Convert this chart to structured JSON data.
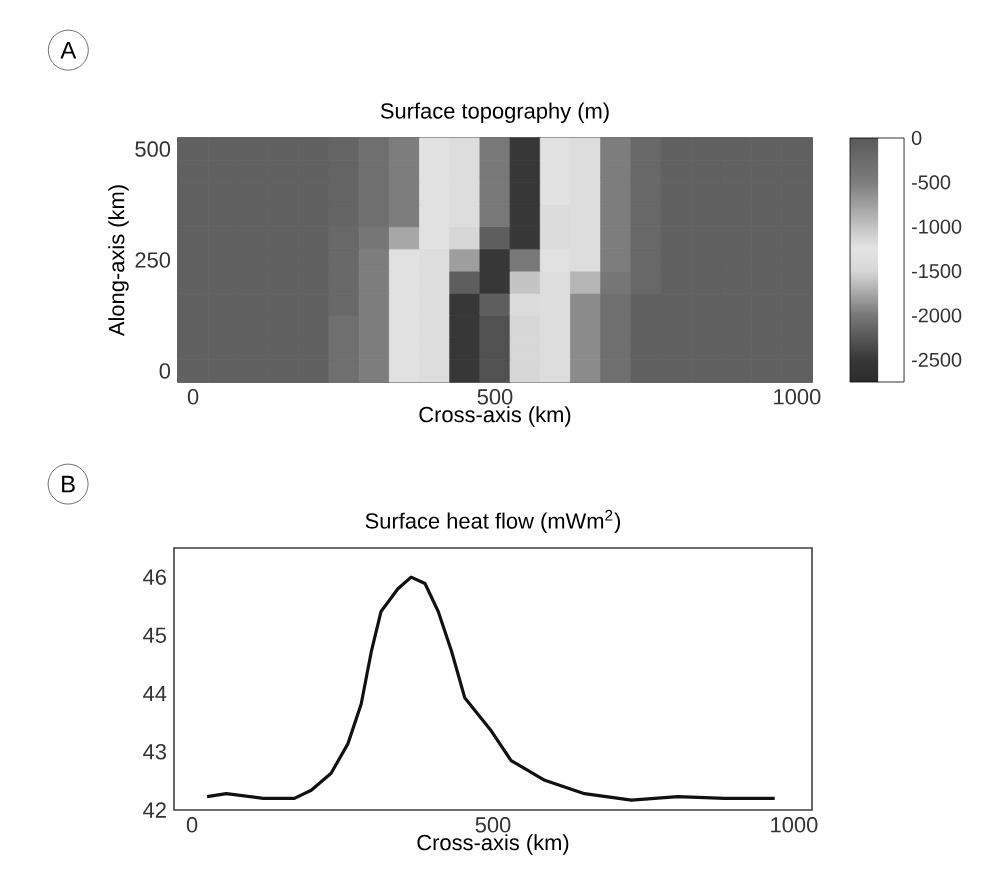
{
  "chart_data": [
    {
      "type": "heatmap",
      "title": "Surface topography (m)",
      "xlabel": "Cross-axis (km)",
      "ylabel": "Along-axis (km)",
      "annotations": [
        "A"
      ],
      "categories": [
        "0",
        null,
        null,
        null,
        null,
        null,
        null,
        null,
        null,
        null,
        "500",
        null,
        null,
        null,
        null,
        null,
        null,
        null,
        null,
        null,
        "1000"
      ],
      "y_categories": [
        "500",
        null,
        null,
        null,
        null,
        "250",
        null,
        null,
        null,
        null,
        "0"
      ],
      "cells": [
        [
          -100,
          -100,
          -100,
          -100,
          -100,
          -150,
          -300,
          -500,
          -1300,
          -1200,
          -2000,
          -2500,
          -1300,
          -1200,
          -500,
          -200,
          -100,
          -100,
          -100,
          -100,
          -100
        ],
        [
          -100,
          -100,
          -100,
          -100,
          -100,
          -150,
          -300,
          -500,
          -1300,
          -1200,
          -2000,
          -2500,
          -1300,
          -1200,
          -500,
          -200,
          -100,
          -100,
          -100,
          -100,
          -100
        ],
        [
          -100,
          -100,
          -100,
          -100,
          -100,
          -150,
          -300,
          -500,
          -1300,
          -1200,
          -2000,
          -2500,
          -1300,
          -1200,
          -500,
          -200,
          -100,
          -100,
          -100,
          -100,
          -100
        ],
        [
          -100,
          -100,
          -100,
          -100,
          -100,
          -150,
          -300,
          -500,
          -1300,
          -1200,
          -2000,
          -2500,
          -1400,
          -1200,
          -500,
          -200,
          -100,
          -100,
          -100,
          -100,
          -100
        ],
        [
          -100,
          -100,
          -100,
          -100,
          -100,
          -200,
          -400,
          -800,
          -1300,
          -1500,
          -2200,
          -2500,
          -1400,
          -1200,
          -500,
          -200,
          -100,
          -100,
          -100,
          -100,
          -100
        ],
        [
          -100,
          -100,
          -100,
          -100,
          -100,
          -200,
          -500,
          -1300,
          -1200,
          -1800,
          -2500,
          -2000,
          -1300,
          -1200,
          -500,
          -200,
          -100,
          -100,
          -100,
          -100,
          -100
        ],
        [
          -100,
          -100,
          -100,
          -100,
          -100,
          -200,
          -500,
          -1300,
          -1200,
          -2200,
          -2500,
          -1600,
          -1200,
          -900,
          -400,
          -200,
          -100,
          -100,
          -100,
          -100,
          -100
        ],
        [
          -100,
          -100,
          -100,
          -100,
          -100,
          -200,
          -500,
          -1300,
          -1200,
          -2500,
          -2200,
          -1400,
          -1200,
          -600,
          -300,
          -100,
          -100,
          -100,
          -100,
          -100,
          -100
        ],
        [
          -100,
          -100,
          -100,
          -100,
          -100,
          -300,
          -500,
          -1300,
          -1200,
          -2500,
          -2300,
          -1500,
          -1200,
          -600,
          -300,
          -100,
          -100,
          -100,
          -100,
          -100,
          -100
        ],
        [
          -100,
          -100,
          -100,
          -100,
          -100,
          -300,
          -500,
          -1300,
          -1200,
          -2500,
          -2300,
          -1500,
          -1200,
          -600,
          -300,
          -100,
          -100,
          -100,
          -100,
          -100,
          -100
        ],
        [
          -100,
          -100,
          -100,
          -100,
          -100,
          -300,
          -500,
          -1300,
          -1200,
          -2500,
          -2300,
          -1500,
          -1200,
          -600,
          -300,
          -100,
          -100,
          -100,
          -100,
          -100,
          -100
        ]
      ],
      "clim": [
        -2750,
        0
      ],
      "cticks": [
        0,
        -500,
        -1000,
        -1500,
        -2000,
        -2500
      ]
    },
    {
      "type": "line",
      "title": "Surface heat flow (mWm$^{2}$)",
      "xlabel": "Cross-axis (km)",
      "annotations": [
        "B"
      ],
      "x": [
        25,
        57,
        118,
        170,
        198,
        231,
        259,
        281,
        298,
        314,
        342,
        364,
        387,
        409,
        431,
        453,
        497,
        530,
        586,
        652,
        730,
        807,
        885,
        968
      ],
      "series": [
        {
          "color": "#111111",
          "values": [
            42.23,
            42.28,
            42.2,
            42.2,
            42.34,
            42.63,
            43.14,
            43.82,
            44.73,
            45.41,
            45.8,
            46.0,
            45.89,
            45.41,
            44.73,
            43.93,
            43.36,
            42.85,
            42.51,
            42.28,
            42.17,
            42.23,
            42.2,
            42.2
          ]
        }
      ],
      "xlim": [
        -30,
        1030
      ],
      "xticks": [
        0,
        500,
        1000
      ],
      "ylim": [
        42,
        46.5
      ],
      "yticks": [
        42,
        43,
        44,
        45,
        46
      ],
      "marker": "none",
      "line_style": "solid",
      "grid": false
    }
  ]
}
